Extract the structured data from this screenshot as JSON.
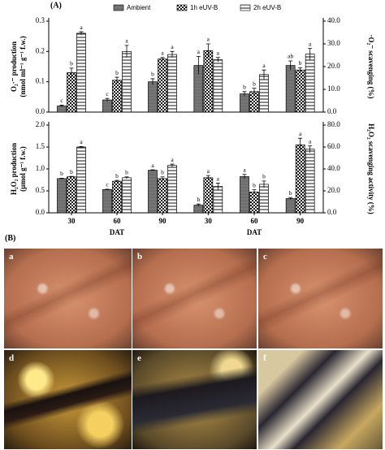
{
  "panel_labels": [
    "(A)",
    "(B)"
  ],
  "chart_data": [
    {
      "type": "bar",
      "legend": "top",
      "ylabel": [
        "O₂·⁻ production",
        "(nmol ml⁻¹ g⁻¹ f.w.)"
      ],
      "yaxis_position": "left",
      "categories": [
        null,
        null,
        null
      ],
      "ylim": [
        0,
        0.3
      ],
      "yticks": [
        {
          "value": 0,
          "label": "0.0"
        },
        0.1,
        0.2,
        0.3
      ],
      "series": [
        {
          "name": "Ambient",
          "color": "#6e6e6e",
          "pattern": "solid",
          "values": [
            0.02,
            0.04,
            0.1
          ],
          "errors": [
            0.003,
            0.005,
            0.01
          ],
          "letters": [
            "c",
            "c",
            "b"
          ]
        },
        {
          "name": "1h eUV-B",
          "color": "#111111",
          "pattern": "checker",
          "values": [
            0.13,
            0.105,
            0.175
          ],
          "errors": [
            0.015,
            0.01,
            0.005
          ],
          "letters": [
            "b",
            "b",
            "a"
          ]
        },
        {
          "name": "2h eUV-B",
          "color": "#111111",
          "pattern": "hlines",
          "values": [
            0.26,
            0.2,
            0.19
          ],
          "errors": [
            0.005,
            0.02,
            0.01
          ],
          "letters": [
            "a",
            "a",
            "a"
          ]
        }
      ]
    },
    {
      "type": "bar",
      "ylabel": [
        "·O₂⁻ scavenging (%)"
      ],
      "yaxis_position": "right",
      "categories": [
        null,
        null,
        null
      ],
      "ylim": [
        0,
        40
      ],
      "yticks": [
        {
          "value": 0,
          "label": "0.0"
        },
        {
          "value": 10,
          "label": "10.0"
        },
        {
          "value": 20,
          "label": "20.0"
        },
        {
          "value": 30,
          "label": "30.0"
        },
        {
          "value": 40,
          "label": "40.0"
        }
      ],
      "series": [
        {
          "color": "#6e6e6e",
          "pattern": "solid",
          "values": [
            20.5,
            8,
            20.5
          ],
          "errors": [
            4,
            1,
            2
          ],
          "letters": [
            "a",
            "b",
            "ab"
          ]
        },
        {
          "color": "#111111",
          "pattern": "checker",
          "values": [
            27,
            9,
            18.5
          ],
          "errors": [
            3,
            1.5,
            1
          ],
          "letters": [
            "a",
            "b",
            "b"
          ]
        },
        {
          "color": "#111111",
          "pattern": "hlines",
          "values": [
            23,
            16.5,
            25.5
          ],
          "errors": [
            1,
            2,
            2.5
          ],
          "letters": [
            "a",
            "a",
            "a"
          ]
        }
      ]
    },
    {
      "type": "bar",
      "ylabel": [
        "H₂O₂ production",
        "(µmol g⁻¹ f.w.)"
      ],
      "yaxis_position": "left",
      "categories": [
        "30",
        "60",
        "90"
      ],
      "xlabel": "DAT",
      "ylim": [
        0,
        2
      ],
      "yticks": [
        {
          "value": 0,
          "label": "0.0"
        },
        0.5,
        {
          "value": 1,
          "label": "1.0"
        },
        1.5,
        {
          "value": 2,
          "label": "2.0"
        }
      ],
      "series": [
        {
          "color": "#6e6e6e",
          "pattern": "solid",
          "values": [
            0.78,
            0.53,
            0.97
          ],
          "errors": [
            0.01,
            0.01,
            0.01
          ],
          "letters": [
            "b",
            "c",
            "a"
          ]
        },
        {
          "color": "#111111",
          "pattern": "checker",
          "values": [
            0.82,
            0.72,
            0.78
          ],
          "errors": [
            0.01,
            0.02,
            0.04
          ],
          "letters": [
            "b",
            "b",
            "b"
          ]
        },
        {
          "color": "#111111",
          "pattern": "hlines",
          "values": [
            1.5,
            0.8,
            1.08
          ],
          "errors": [
            0.01,
            0.02,
            0.03
          ],
          "letters": [
            "a",
            "b",
            "a"
          ]
        }
      ]
    },
    {
      "type": "bar",
      "ylabel": [
        "H₂O₂ scavenging activity (%)"
      ],
      "yaxis_position": "right",
      "categories": [
        "30",
        "60",
        "90"
      ],
      "xlabel": "DAT",
      "ylim": [
        0,
        80
      ],
      "yticks": [
        {
          "value": 0,
          "label": "0.0"
        },
        {
          "value": 20,
          "label": "20.0"
        },
        {
          "value": 40,
          "label": "40.0"
        },
        {
          "value": 60,
          "label": "60.0"
        },
        {
          "value": 80,
          "label": "80.0"
        }
      ],
      "series": [
        {
          "color": "#6e6e6e",
          "pattern": "solid",
          "values": [
            7,
            33,
            13
          ],
          "errors": [
            1,
            2,
            1
          ],
          "letters": [
            "b",
            "a",
            "b"
          ]
        },
        {
          "color": "#111111",
          "pattern": "checker",
          "values": [
            32,
            19,
            62
          ],
          "errors": [
            2,
            2,
            6
          ],
          "letters": [
            "a",
            "b",
            "a"
          ]
        },
        {
          "color": "#111111",
          "pattern": "hlines",
          "values": [
            24,
            26,
            58
          ],
          "errors": [
            3,
            3,
            3
          ],
          "letters": [
            "a",
            "b",
            "a"
          ]
        }
      ]
    }
  ],
  "images": [
    {
      "label": "a"
    },
    {
      "label": "b"
    },
    {
      "label": "c"
    },
    {
      "label": "d"
    },
    {
      "label": "e"
    },
    {
      "label": "f"
    }
  ]
}
